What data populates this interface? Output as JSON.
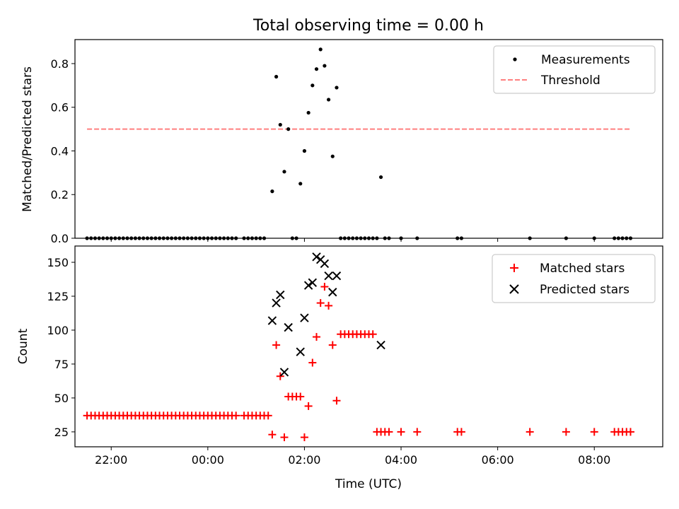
{
  "chart_data": [
    {
      "type": "scatter",
      "title": "Total observing time = 0.00 h",
      "xlabel": "",
      "ylabel": "Matched/Predicted stars",
      "xlim": [
        "21:15",
        "09:25"
      ],
      "ylim": [
        0,
        0.91
      ],
      "y_ticks": [
        "0.0",
        "0.2",
        "0.4",
        "0.6",
        "0.8"
      ],
      "legend_position": "top-right",
      "grid": false,
      "series": [
        {
          "name": "Measurements",
          "marker": "dot",
          "color": "#000000",
          "x": [
            "21:30",
            "21:35",
            "21:40",
            "21:45",
            "21:50",
            "21:55",
            "22:00",
            "22:05",
            "22:10",
            "22:15",
            "22:20",
            "22:25",
            "22:30",
            "22:35",
            "22:40",
            "22:45",
            "22:50",
            "22:55",
            "23:00",
            "23:05",
            "23:10",
            "23:15",
            "23:20",
            "23:25",
            "23:30",
            "23:35",
            "23:40",
            "23:45",
            "23:50",
            "23:55",
            "00:00",
            "00:05",
            "00:10",
            "00:15",
            "00:20",
            "00:25",
            "00:30",
            "00:35",
            "00:45",
            "00:50",
            "00:55",
            "01:00",
            "01:05",
            "01:10",
            "01:20",
            "01:25",
            "01:30",
            "01:35",
            "01:40",
            "01:45",
            "01:50",
            "01:55",
            "02:00",
            "02:05",
            "02:10",
            "02:15",
            "02:20",
            "02:25",
            "02:30",
            "02:35",
            "02:40",
            "02:45",
            "02:50",
            "02:55",
            "03:00",
            "03:05",
            "03:10",
            "03:15",
            "03:20",
            "03:25",
            "03:30",
            "03:35",
            "03:40",
            "03:45",
            "04:00",
            "04:20",
            "05:10",
            "05:15",
            "06:40",
            "07:25",
            "08:00",
            "08:25",
            "08:30",
            "08:35",
            "08:40",
            "08:45"
          ],
          "y": [
            0,
            0,
            0,
            0,
            0,
            0,
            0,
            0,
            0,
            0,
            0,
            0,
            0,
            0,
            0,
            0,
            0,
            0,
            0,
            0,
            0,
            0,
            0,
            0,
            0,
            0,
            0,
            0,
            0,
            0,
            0,
            0,
            0,
            0,
            0,
            0,
            0,
            0,
            0,
            0,
            0,
            0,
            0,
            0,
            0.215,
            0.74,
            0.52,
            0.305,
            0.5,
            0,
            0,
            0.25,
            0.4,
            0.575,
            0.7,
            0.775,
            0.865,
            0.79,
            0.635,
            0.375,
            0.69,
            0,
            0,
            0,
            0,
            0,
            0,
            0,
            0,
            0,
            0,
            0.28,
            0,
            0,
            0,
            0,
            0,
            0,
            0,
            0,
            0,
            0,
            0,
            0,
            0,
            0
          ]
        },
        {
          "name": "Threshold",
          "marker": "dashed-line",
          "color": "#ff7f7f",
          "x": [
            "21:30",
            "08:45"
          ],
          "y": [
            0.5,
            0.5
          ]
        }
      ]
    },
    {
      "type": "scatter",
      "title": "",
      "xlabel": "Time (UTC)",
      "ylabel": "Count",
      "xlim": [
        "21:15",
        "09:25"
      ],
      "ylim": [
        14,
        162
      ],
      "x_ticks": [
        "22:00",
        "00:00",
        "02:00",
        "04:00",
        "06:00",
        "08:00"
      ],
      "y_ticks": [
        "25",
        "50",
        "75",
        "100",
        "125",
        "150"
      ],
      "legend_position": "top-right",
      "grid": false,
      "series": [
        {
          "name": "Matched stars",
          "marker": "plus",
          "color": "#ff0000",
          "x": [
            "21:30",
            "21:35",
            "21:40",
            "21:45",
            "21:50",
            "21:55",
            "22:00",
            "22:05",
            "22:10",
            "22:15",
            "22:20",
            "22:25",
            "22:30",
            "22:35",
            "22:40",
            "22:45",
            "22:50",
            "22:55",
            "23:00",
            "23:05",
            "23:10",
            "23:15",
            "23:20",
            "23:25",
            "23:30",
            "23:35",
            "23:40",
            "23:45",
            "23:50",
            "23:55",
            "00:00",
            "00:05",
            "00:10",
            "00:15",
            "00:20",
            "00:25",
            "00:30",
            "00:35",
            "00:45",
            "00:50",
            "00:55",
            "01:00",
            "01:05",
            "01:10",
            "01:15",
            "01:20",
            "01:25",
            "01:30",
            "01:35",
            "01:40",
            "01:45",
            "01:50",
            "01:55",
            "02:00",
            "02:05",
            "02:10",
            "02:15",
            "02:20",
            "02:25",
            "02:30",
            "02:35",
            "02:40",
            "02:45",
            "02:50",
            "02:55",
            "03:00",
            "03:05",
            "03:10",
            "03:15",
            "03:20",
            "03:25",
            "03:30",
            "03:35",
            "03:40",
            "03:45",
            "04:00",
            "04:20",
            "05:10",
            "05:15",
            "06:40",
            "07:25",
            "08:00",
            "08:25",
            "08:30",
            "08:35",
            "08:40",
            "08:45"
          ],
          "y": [
            37,
            37,
            37,
            37,
            37,
            37,
            37,
            37,
            37,
            37,
            37,
            37,
            37,
            37,
            37,
            37,
            37,
            37,
            37,
            37,
            37,
            37,
            37,
            37,
            37,
            37,
            37,
            37,
            37,
            37,
            37,
            37,
            37,
            37,
            37,
            37,
            37,
            37,
            37,
            37,
            37,
            37,
            37,
            37,
            37,
            23,
            89,
            66,
            21,
            51,
            51,
            51,
            51,
            21,
            44,
            76,
            95,
            120,
            132,
            118,
            89,
            48,
            97,
            97,
            97,
            97,
            97,
            97,
            97,
            97,
            97,
            25,
            25,
            25,
            25,
            25,
            25,
            25,
            25,
            25,
            25,
            25,
            25,
            25,
            25,
            25,
            25
          ]
        },
        {
          "name": "Predicted stars",
          "marker": "x",
          "color": "#000000",
          "x": [
            "01:20",
            "01:25",
            "01:30",
            "01:35",
            "01:40",
            "01:55",
            "02:00",
            "02:05",
            "02:10",
            "02:15",
            "02:20",
            "02:25",
            "02:30",
            "02:35",
            "02:40",
            "03:35"
          ],
          "y": [
            107,
            120,
            126,
            69,
            102,
            84,
            109,
            133,
            135,
            154,
            152,
            149,
            140,
            128,
            140,
            89
          ]
        }
      ]
    }
  ]
}
